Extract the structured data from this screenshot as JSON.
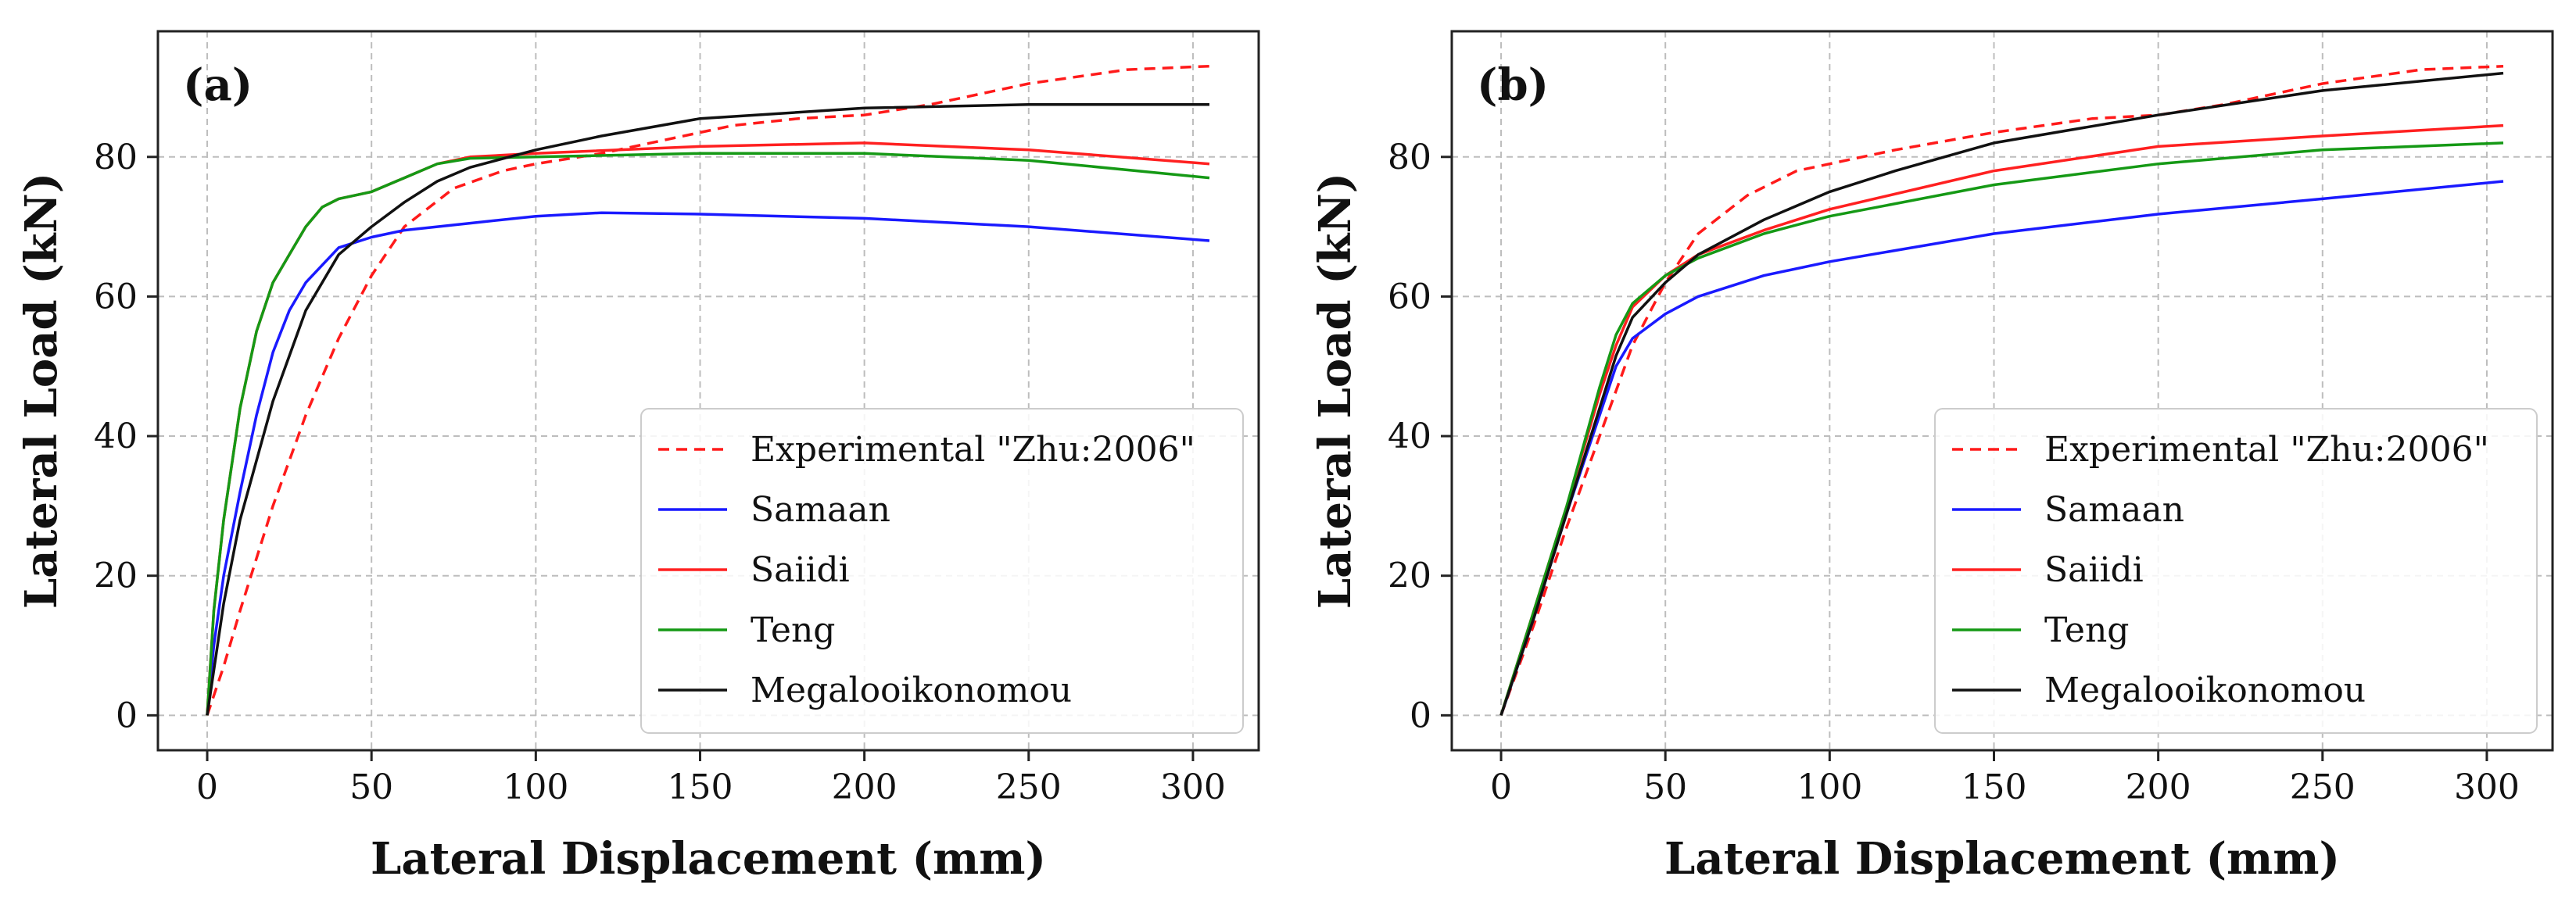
{
  "chart_data": [
    {
      "type": "line",
      "panel_label": "(a)",
      "xlabel": "Lateral Displacement (mm)",
      "ylabel": "Lateral Load (kN)",
      "xlim": [
        -15,
        320
      ],
      "ylim": [
        -5,
        98
      ],
      "xticks": [
        0,
        50,
        100,
        150,
        200,
        250,
        300
      ],
      "yticks": [
        0,
        20,
        40,
        60,
        80
      ],
      "grid": true,
      "legend_position": "lower-right",
      "series": [
        {
          "name": "Experimental \"Zhu:2006\"",
          "color": "#ff1a1a",
          "dashed": true,
          "x": [
            0,
            5,
            10,
            20,
            30,
            40,
            50,
            60,
            75,
            90,
            100,
            120,
            140,
            160,
            180,
            200,
            220,
            250,
            280,
            305
          ],
          "y": [
            0,
            7,
            15,
            30,
            43,
            54,
            63,
            70,
            75.5,
            78,
            79,
            80.5,
            82.5,
            84.5,
            85.5,
            86,
            87.5,
            90.5,
            92.5,
            93
          ]
        },
        {
          "name": "Samaan",
          "color": "#1a1aff",
          "dashed": false,
          "x": [
            0,
            2,
            5,
            10,
            15,
            20,
            25,
            30,
            40,
            50,
            60,
            80,
            100,
            120,
            150,
            200,
            250,
            305
          ],
          "y": [
            0,
            10,
            20,
            32,
            43,
            52,
            58,
            62,
            67,
            68.5,
            69.5,
            70.5,
            71.5,
            72,
            71.8,
            71.2,
            70,
            68
          ]
        },
        {
          "name": "Saiidi",
          "color": "#ff2020",
          "dashed": false,
          "x": [
            0,
            2,
            5,
            10,
            15,
            20,
            25,
            30,
            35,
            40,
            50,
            60,
            70,
            80,
            100,
            150,
            200,
            250,
            305
          ],
          "y": [
            0,
            15,
            28,
            44,
            55,
            62,
            66,
            70,
            72.8,
            74,
            75,
            77,
            79,
            80,
            80.5,
            81.5,
            82,
            81,
            79
          ]
        },
        {
          "name": "Teng",
          "color": "#159915",
          "dashed": false,
          "x": [
            0,
            2,
            5,
            10,
            15,
            20,
            25,
            30,
            35,
            40,
            50,
            60,
            70,
            80,
            100,
            150,
            200,
            250,
            305
          ],
          "y": [
            0,
            15,
            28,
            44,
            55,
            62,
            66,
            70,
            72.8,
            74,
            75,
            77,
            79,
            79.8,
            80,
            80.5,
            80.5,
            79.5,
            77
          ]
        },
        {
          "name": "Megalooikonomou",
          "color": "#111111",
          "dashed": false,
          "x": [
            0,
            5,
            10,
            20,
            30,
            40,
            50,
            60,
            70,
            80,
            100,
            120,
            150,
            200,
            250,
            305
          ],
          "y": [
            0,
            16,
            28,
            45,
            58,
            66,
            70,
            73.5,
            76.5,
            78.5,
            81,
            83,
            85.5,
            87,
            87.5,
            87.5
          ]
        }
      ]
    },
    {
      "type": "line",
      "panel_label": "(b)",
      "xlabel": "Lateral Displacement (mm)",
      "ylabel": "Lateral Load (kN)",
      "xlim": [
        -15,
        320
      ],
      "ylim": [
        -5,
        98
      ],
      "xticks": [
        0,
        50,
        100,
        150,
        200,
        250,
        300
      ],
      "yticks": [
        0,
        20,
        40,
        60,
        80
      ],
      "grid": true,
      "legend_position": "lower-right",
      "series": [
        {
          "name": "Experimental \"Zhu:2006\"",
          "color": "#ff1a1a",
          "dashed": true,
          "x": [
            0,
            10,
            20,
            30,
            40,
            50,
            60,
            75,
            90,
            100,
            120,
            150,
            180,
            200,
            220,
            250,
            280,
            305
          ],
          "y": [
            0,
            13,
            27,
            40,
            53,
            62,
            69,
            74.5,
            78,
            79,
            81,
            83.5,
            85.5,
            86,
            87.5,
            90.5,
            92.5,
            93
          ]
        },
        {
          "name": "Samaan",
          "color": "#1a1aff",
          "dashed": false,
          "x": [
            0,
            10,
            20,
            30,
            35,
            40,
            50,
            60,
            80,
            100,
            150,
            200,
            250,
            305
          ],
          "y": [
            0,
            14,
            29,
            43,
            50,
            54,
            57.5,
            60,
            63,
            65,
            69,
            71.8,
            74,
            76.5
          ]
        },
        {
          "name": "Saiidi",
          "color": "#ff2020",
          "dashed": false,
          "x": [
            0,
            10,
            20,
            30,
            35,
            40,
            50,
            60,
            80,
            100,
            150,
            200,
            250,
            305
          ],
          "y": [
            0,
            15,
            30,
            46,
            53,
            58.5,
            63,
            66,
            69.5,
            72.5,
            78,
            81.5,
            83,
            84.5
          ]
        },
        {
          "name": "Teng",
          "color": "#159915",
          "dashed": false,
          "x": [
            0,
            10,
            20,
            30,
            35,
            40,
            50,
            60,
            80,
            100,
            150,
            200,
            250,
            305
          ],
          "y": [
            0,
            15,
            30,
            47,
            54.5,
            59,
            63,
            65.5,
            69,
            71.5,
            76,
            79,
            81,
            82
          ]
        },
        {
          "name": "Megalooikonomou",
          "color": "#111111",
          "dashed": false,
          "x": [
            0,
            10,
            20,
            30,
            35,
            40,
            50,
            60,
            80,
            100,
            120,
            150,
            200,
            250,
            305
          ],
          "y": [
            0,
            14,
            29,
            44,
            51.5,
            57,
            62,
            66,
            71,
            75,
            78,
            82,
            86,
            89.5,
            92
          ]
        }
      ]
    }
  ]
}
